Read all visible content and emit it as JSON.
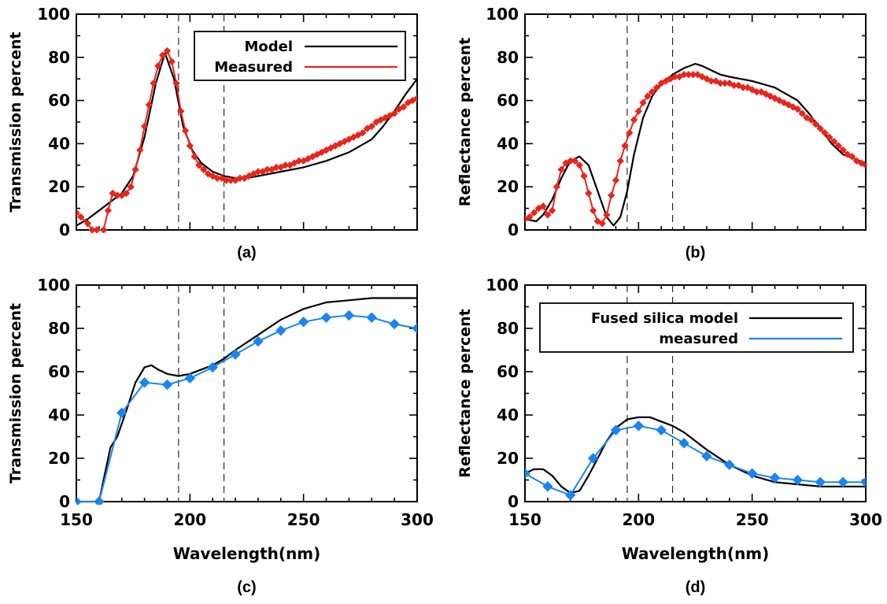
{
  "chart_data": [
    {
      "id": "a",
      "type": "line",
      "panel_label": "(a)",
      "ylabel": "Transmission percent",
      "xlabel": "",
      "xlim": [
        150,
        300
      ],
      "ylim": [
        0,
        100
      ],
      "yticks": [
        "0",
        "20",
        "40",
        "60",
        "80",
        "100"
      ],
      "xticks": [],
      "vlines": [
        195,
        215
      ],
      "legend": {
        "position": "top-right",
        "entries": [
          "Model",
          "Measured"
        ]
      },
      "series": [
        {
          "name": "Model",
          "color": "#000000",
          "marker": "none",
          "x": [
            150,
            155,
            160,
            165,
            170,
            175,
            180,
            185,
            189,
            193,
            197,
            201,
            205,
            210,
            215,
            220,
            225,
            230,
            240,
            250,
            260,
            270,
            280,
            285,
            290,
            295,
            300
          ],
          "y": [
            2,
            5,
            9,
            13,
            17,
            25,
            43,
            68,
            82,
            70,
            48,
            37,
            31,
            27,
            25,
            24,
            24,
            25,
            27,
            29,
            32,
            36,
            42,
            48,
            55,
            63,
            70
          ]
        },
        {
          "name": "Measured",
          "color": "#e8261c",
          "marker": "diamond",
          "x": [
            150,
            152,
            155,
            157,
            159,
            162,
            164,
            166,
            168,
            170,
            172,
            174,
            176,
            178,
            180,
            182,
            184,
            186,
            188,
            190,
            192,
            194,
            196,
            198,
            200,
            202,
            204,
            206,
            208,
            210,
            212,
            214,
            216,
            218,
            220,
            222,
            224,
            226,
            228,
            230,
            232,
            234,
            236,
            238,
            240,
            242,
            244,
            246,
            248,
            250,
            252,
            254,
            256,
            258,
            260,
            262,
            264,
            266,
            268,
            270,
            272,
            274,
            276,
            278,
            280,
            282,
            284,
            286,
            288,
            290,
            292,
            294,
            296,
            298,
            300
          ],
          "y": [
            8,
            6,
            3,
            0,
            0,
            0,
            9,
            17,
            16,
            16,
            17,
            20,
            28,
            37,
            48,
            58,
            68,
            76,
            81,
            83,
            78,
            68,
            55,
            46,
            39,
            34,
            30,
            28,
            26,
            25,
            24,
            24,
            23,
            23,
            23,
            24,
            24,
            25,
            26,
            27,
            27,
            28,
            28,
            29,
            29,
            30,
            30,
            31,
            32,
            32,
            33,
            34,
            35,
            36,
            37,
            38,
            39,
            40,
            41,
            42,
            43,
            44,
            45,
            47,
            48,
            50,
            51,
            52,
            53,
            54,
            56,
            57,
            59,
            60,
            61
          ]
        }
      ]
    },
    {
      "id": "b",
      "type": "line",
      "panel_label": "(b)",
      "ylabel": "Reflectance percent",
      "xlabel": "",
      "xlim": [
        150,
        300
      ],
      "ylim": [
        0,
        100
      ],
      "yticks": [
        "0",
        "20",
        "40",
        "60",
        "80",
        "100"
      ],
      "xticks": [],
      "vlines": [
        195,
        215
      ],
      "series": [
        {
          "name": "Model",
          "color": "#000000",
          "marker": "none",
          "x": [
            150,
            155,
            158,
            162,
            166,
            170,
            174,
            178,
            182,
            186,
            189,
            192,
            195,
            198,
            202,
            206,
            210,
            215,
            220,
            225,
            228,
            232,
            236,
            240,
            250,
            260,
            270,
            275,
            280,
            285,
            290,
            295,
            300
          ],
          "y": [
            5,
            4,
            7,
            14,
            24,
            32,
            34,
            30,
            18,
            6,
            2,
            6,
            18,
            35,
            52,
            62,
            68,
            72,
            75,
            77,
            76,
            74,
            72,
            71,
            69,
            66,
            60,
            54,
            47,
            40,
            35,
            33,
            31
          ]
        },
        {
          "name": "Measured",
          "color": "#e8261c",
          "marker": "diamond",
          "x": [
            150,
            152,
            154,
            156,
            158,
            160,
            162,
            164,
            166,
            168,
            170,
            172,
            174,
            176,
            178,
            180,
            182,
            184,
            186,
            188,
            190,
            192,
            194,
            196,
            198,
            200,
            202,
            204,
            206,
            208,
            210,
            212,
            214,
            216,
            218,
            220,
            222,
            224,
            226,
            228,
            230,
            232,
            234,
            236,
            238,
            240,
            242,
            244,
            246,
            248,
            250,
            252,
            254,
            256,
            258,
            260,
            262,
            264,
            266,
            268,
            270,
            272,
            274,
            276,
            278,
            280,
            282,
            284,
            286,
            288,
            290,
            292,
            294,
            296,
            298,
            300
          ],
          "y": [
            5,
            6,
            8,
            10,
            11,
            7,
            9,
            20,
            28,
            31,
            32,
            32,
            30,
            25,
            17,
            9,
            4,
            3,
            7,
            16,
            23,
            32,
            39,
            45,
            51,
            55,
            59,
            62,
            64,
            66,
            68,
            69,
            70,
            71,
            71,
            72,
            72,
            72,
            72,
            71,
            70,
            69,
            69,
            68,
            68,
            68,
            67,
            67,
            66,
            66,
            65,
            64,
            64,
            63,
            62,
            61,
            60,
            59,
            58,
            57,
            56,
            54,
            52,
            51,
            49,
            47,
            45,
            43,
            41,
            39,
            37,
            35,
            34,
            32,
            31,
            30
          ]
        }
      ]
    },
    {
      "id": "c",
      "type": "line",
      "panel_label": "(c)",
      "ylabel": "Transmission percent",
      "xlabel": "Wavelength(nm)",
      "xlim": [
        150,
        300
      ],
      "ylim": [
        0,
        100
      ],
      "yticks": [
        "0",
        "20",
        "40",
        "60",
        "80",
        "100"
      ],
      "xticks": [
        "150",
        "200",
        "250",
        "300"
      ],
      "vlines": [
        195,
        215
      ],
      "series": [
        {
          "name": "Model",
          "color": "#000000",
          "marker": "none",
          "x": [
            150,
            155,
            160,
            162,
            165,
            168,
            172,
            176,
            180,
            183,
            186,
            190,
            195,
            200,
            205,
            210,
            215,
            220,
            230,
            240,
            250,
            260,
            270,
            280,
            290,
            300
          ],
          "y": [
            0,
            0,
            0,
            10,
            25,
            30,
            42,
            55,
            62,
            63,
            61,
            59,
            58,
            59,
            61,
            63,
            66,
            70,
            77,
            84,
            89,
            92,
            93,
            94,
            94,
            94
          ]
        },
        {
          "name": "Measured",
          "color": "#1a85ee",
          "marker": "diamond",
          "x": [
            150,
            160,
            170,
            180,
            190,
            200,
            210,
            220,
            230,
            240,
            250,
            260,
            270,
            280,
            290,
            300
          ],
          "y": [
            0,
            0,
            41,
            55,
            54,
            57,
            62,
            68,
            74,
            79,
            83,
            85,
            86,
            85,
            82,
            80
          ]
        }
      ]
    },
    {
      "id": "d",
      "type": "line",
      "panel_label": "(d)",
      "ylabel": "Reflectance percent",
      "xlabel": "Wavelength(nm)",
      "xlim": [
        150,
        300
      ],
      "ylim": [
        0,
        100
      ],
      "yticks": [
        "0",
        "20",
        "40",
        "60",
        "80",
        "100"
      ],
      "xticks": [
        "150",
        "200",
        "250",
        "300"
      ],
      "vlines": [
        195,
        215
      ],
      "legend": {
        "position": "top",
        "entries": [
          "Fused silica model",
          "measured"
        ]
      },
      "series": [
        {
          "name": "Fused silica model",
          "color": "#000000",
          "marker": "none",
          "x": [
            150,
            154,
            158,
            162,
            166,
            170,
            174,
            178,
            182,
            186,
            190,
            195,
            200,
            205,
            210,
            215,
            220,
            230,
            240,
            250,
            260,
            270,
            280,
            290,
            300
          ],
          "y": [
            13,
            15,
            15,
            12,
            7,
            4,
            5,
            12,
            20,
            28,
            34,
            38,
            39,
            39,
            37,
            35,
            32,
            24,
            17,
            12,
            9,
            8,
            7,
            7,
            7
          ]
        },
        {
          "name": "measured",
          "color": "#1a85ee",
          "marker": "diamond",
          "x": [
            150,
            160,
            170,
            180,
            190,
            200,
            210,
            220,
            230,
            240,
            250,
            260,
            270,
            280,
            290,
            300
          ],
          "y": [
            13,
            7,
            3,
            20,
            33,
            35,
            33,
            27,
            21,
            17,
            13,
            11,
            10,
            9,
            9,
            9
          ]
        }
      ]
    }
  ]
}
